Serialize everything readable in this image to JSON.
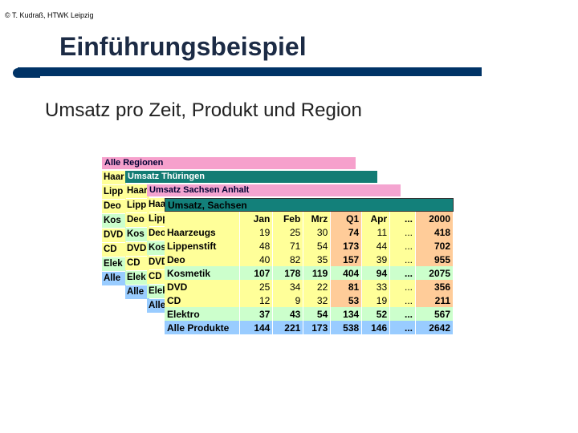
{
  "copyright": "© T. Kudraß, HTWK Leipzig",
  "title": "Einführungsbeispiel",
  "subtitle": "Umsatz pro Zeit, Produkt und Region",
  "colors": {
    "title_bar": "#003366",
    "pink": "#f6a0cc",
    "teal": "#13807a",
    "yellow": "#ffff99",
    "green": "#ccffcc",
    "blue": "#99ccff",
    "orange": "#ffcc99"
  },
  "cube": {
    "regionen": {
      "header": "Alle Regionen",
      "rows": [
        "Haar",
        "Lipp",
        "Deo",
        "Kos",
        "DVD",
        "CD",
        "Elek",
        "Alle"
      ]
    },
    "thueringen": {
      "header": "Umsatz Thüringen",
      "rows": [
        "Haar",
        "Lipp",
        "Deo",
        "Kos",
        "DVD",
        "CD",
        "Elek",
        "Alle"
      ]
    },
    "anhalt": {
      "header": "Umsatz Sachsen Anhalt",
      "rows": [
        "Haar",
        "Lipp",
        "Deo",
        "Kos",
        "DVD",
        "CD",
        "Elek",
        "Alle"
      ]
    },
    "sachsen": {
      "header": "Umsatz, Sachsen",
      "columns": [
        "Jan",
        "Feb",
        "Mrz",
        "Q1",
        "Apr",
        "...",
        "2000"
      ],
      "rows": [
        {
          "label": "Haarzeugs",
          "values": [
            "19",
            "25",
            "30",
            "74",
            "11",
            "...",
            "418"
          ]
        },
        {
          "label": "Lippenstift",
          "values": [
            "48",
            "71",
            "54",
            "173",
            "44",
            "...",
            "702"
          ]
        },
        {
          "label": "Deo",
          "values": [
            "40",
            "82",
            "35",
            "157",
            "39",
            "...",
            "955"
          ]
        },
        {
          "label": "Kosmetik",
          "values": [
            "107",
            "178",
            "119",
            "404",
            "94",
            "...",
            "2075"
          ]
        },
        {
          "label": "DVD",
          "values": [
            "25",
            "34",
            "22",
            "81",
            "33",
            "...",
            "356"
          ]
        },
        {
          "label": "CD",
          "values": [
            "12",
            "9",
            "32",
            "53",
            "19",
            "...",
            "211"
          ]
        },
        {
          "label": "Elektro",
          "values": [
            "37",
            "43",
            "54",
            "134",
            "52",
            "...",
            "567"
          ]
        },
        {
          "label": "Alle Produkte",
          "values": [
            "144",
            "221",
            "173",
            "538",
            "146",
            "...",
            "2642"
          ]
        }
      ]
    }
  }
}
